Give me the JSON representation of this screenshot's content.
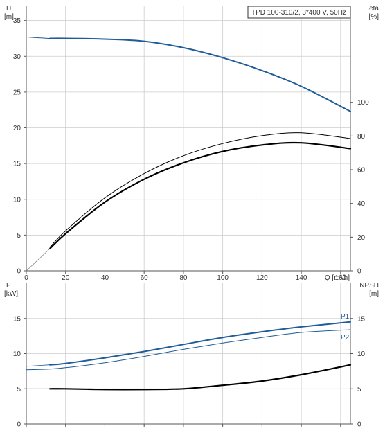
{
  "pump_label": "TPD 100-310/2, 3*400 V, 50Hz",
  "colors": {
    "blue": "#1f5c99",
    "black": "#000000",
    "grid": "#cccccc",
    "axis": "#555555"
  },
  "chart_data": [
    {
      "type": "line",
      "panel": "top",
      "title": "TPD 100-310/2, 3*400 V, 50Hz",
      "grid": true,
      "x_axis": {
        "label": "Q [m³/h]",
        "range": [
          0,
          165
        ],
        "ticks": [
          0,
          20,
          40,
          60,
          80,
          100,
          120,
          140,
          160
        ]
      },
      "y_left": {
        "label_line1": "H",
        "label_line2": "[m]",
        "range": [
          0,
          37
        ],
        "ticks": [
          0,
          5,
          10,
          15,
          20,
          25,
          30,
          35
        ]
      },
      "y_right": {
        "label_line1": "eta",
        "label_line2": "[%]",
        "range": [
          0,
          157
        ],
        "ticks": [
          0,
          20,
          40,
          60,
          80,
          100
        ]
      },
      "series": [
        {
          "axis": "left",
          "color": "#1f5c99",
          "width": 2.0,
          "x": [
            12,
            20,
            40,
            60,
            80,
            100,
            120,
            140,
            165
          ],
          "y": [
            32.5,
            32.5,
            32.4,
            32.1,
            31.2,
            29.8,
            28.0,
            25.8,
            22.3
          ]
        },
        {
          "axis": "left",
          "color": "#1f5c99",
          "width": 1.0,
          "dashed_ext": true,
          "x": [
            0,
            5,
            12
          ],
          "y": [
            32.7,
            32.6,
            32.5
          ]
        },
        {
          "axis": "left",
          "color": "#000000",
          "width": 1.0,
          "x": [
            12,
            20,
            40,
            60,
            80,
            100,
            120,
            140,
            165
          ],
          "y": [
            3.3,
            5.6,
            10.2,
            13.6,
            16.1,
            17.8,
            18.9,
            19.3,
            18.5
          ]
        },
        {
          "axis": "left",
          "color": "#000000",
          "width": 2.2,
          "x": [
            12,
            20,
            40,
            60,
            80,
            100,
            120,
            140,
            165
          ],
          "y": [
            3.1,
            5.2,
            9.6,
            12.8,
            15.1,
            16.7,
            17.6,
            17.9,
            17.1
          ]
        },
        {
          "axis": "left",
          "color": "#888888",
          "width": 0.8,
          "x": [
            0,
            12
          ],
          "y": [
            0,
            3.1
          ]
        }
      ]
    },
    {
      "type": "line",
      "panel": "bottom",
      "grid": true,
      "x_axis": {
        "range": [
          0,
          165
        ],
        "ticks": [
          0,
          20,
          40,
          60,
          80,
          100,
          120,
          140,
          160
        ]
      },
      "y_left": {
        "label_line1": "P",
        "label_line2": "[kW]",
        "range": [
          0,
          20
        ],
        "ticks": [
          0,
          5,
          10,
          15
        ]
      },
      "y_right": {
        "label_line1": "NPSH",
        "label_line2": "[m]",
        "range": [
          0,
          20
        ],
        "ticks": [
          0,
          5,
          10,
          15
        ]
      },
      "series": [
        {
          "name": "P1",
          "axis": "left",
          "color": "#1f5c99",
          "width": 2.0,
          "x": [
            12,
            20,
            40,
            60,
            80,
            100,
            120,
            140,
            165
          ],
          "y": [
            8.4,
            8.6,
            9.4,
            10.3,
            11.3,
            12.3,
            13.1,
            13.8,
            14.5
          ]
        },
        {
          "axis": "left",
          "color": "#1f5c99",
          "width": 0.8,
          "x": [
            0,
            12
          ],
          "y": [
            8.2,
            8.4
          ]
        },
        {
          "name": "P2",
          "axis": "left",
          "color": "#1f5c99",
          "width": 1.0,
          "x": [
            0,
            12,
            20,
            40,
            60,
            80,
            100,
            120,
            140,
            165
          ],
          "y": [
            7.7,
            7.8,
            8.0,
            8.7,
            9.6,
            10.6,
            11.5,
            12.3,
            13.0,
            13.4
          ]
        },
        {
          "axis": "right",
          "color": "#000000",
          "width": 2.2,
          "x": [
            12,
            20,
            40,
            60,
            80,
            100,
            120,
            140,
            165
          ],
          "y": [
            5.0,
            5.0,
            4.9,
            4.9,
            5.0,
            5.5,
            6.1,
            7.0,
            8.4
          ]
        },
        {
          "axis": "right",
          "color": "#888888",
          "width": 0.8,
          "x": [
            0,
            12
          ],
          "y": [
            5.0,
            5.0
          ]
        }
      ]
    }
  ]
}
